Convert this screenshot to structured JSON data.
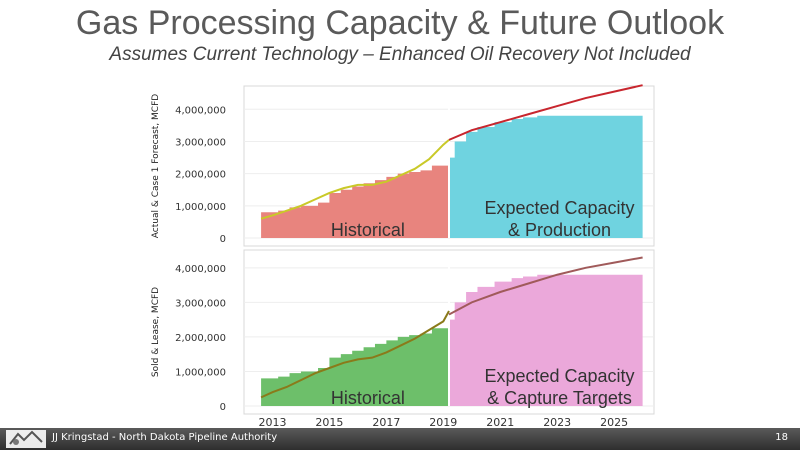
{
  "slide": {
    "title": "Gas Processing Capacity & Future Outlook",
    "subtitle": "Assumes Current Technology – Enhanced Oil Recovery Not Included",
    "footer": "JJ Kringstad - North Dakota Pipeline Authority",
    "page_number": "18"
  },
  "colors": {
    "historical_capacity_top": "#e8847e",
    "expected_capacity_top": "#6fd3e0",
    "forecast_line_top": "#c8262e",
    "actual_line_top": "#c9c928",
    "historical_capacity_bottom": "#6dbf6a",
    "expected_capacity_bottom": "#eba8da",
    "forecast_line_bottom": "#a05a5a",
    "actual_line_bottom": "#8a7a1a"
  },
  "chart_data": [
    {
      "type": "area",
      "ylabel": "Actual & Case 1 Forecast, MCFD",
      "ylim": [
        0,
        4600000
      ],
      "yticks": [
        0,
        1000000,
        2000000,
        3000000,
        4000000
      ],
      "ytick_labels": [
        "0",
        "1,000,000",
        "2,000,000",
        "3,000,000",
        "4,000,000"
      ],
      "xlim": [
        2012.0,
        2026.4
      ],
      "divider_x": 2019.2,
      "region_labels": {
        "historical": "Historical",
        "expected": "Expected Capacity\n& Production"
      },
      "series": [
        {
          "name": "capacity",
          "kind": "step-area",
          "x": [
            2012.6,
            2013.2,
            2013.6,
            2014.0,
            2014.6,
            2015.0,
            2015.4,
            2015.8,
            2016.2,
            2016.6,
            2017.0,
            2017.4,
            2017.8,
            2018.2,
            2018.6,
            2019.2,
            2019.4,
            2019.8,
            2020.2,
            2020.8,
            2021.4,
            2021.8,
            2022.3,
            2026.0
          ],
          "values": [
            800000,
            850000,
            950000,
            1000000,
            1100000,
            1400000,
            1500000,
            1600000,
            1700000,
            1800000,
            1900000,
            2000000,
            2050000,
            2100000,
            2250000,
            2500000,
            3000000,
            3300000,
            3450000,
            3600000,
            3700000,
            3750000,
            3800000,
            3800000
          ]
        },
        {
          "name": "actual",
          "kind": "line",
          "x": [
            2012.6,
            2013.0,
            2013.5,
            2014.0,
            2014.5,
            2015.0,
            2015.5,
            2016.0,
            2016.5,
            2017.0,
            2017.5,
            2018.0,
            2018.5,
            2019.0,
            2019.2
          ],
          "values": [
            600000,
            700000,
            850000,
            1000000,
            1200000,
            1400000,
            1550000,
            1650000,
            1650000,
            1750000,
            1950000,
            2150000,
            2450000,
            2900000,
            3050000
          ]
        },
        {
          "name": "forecast",
          "kind": "line",
          "x": [
            2019.2,
            2020.0,
            2021.0,
            2022.0,
            2023.0,
            2024.0,
            2025.0,
            2026.0
          ],
          "values": [
            3050000,
            3350000,
            3600000,
            3850000,
            4100000,
            4350000,
            4550000,
            4750000
          ]
        }
      ]
    },
    {
      "type": "area",
      "ylabel": "Sold & Lease, MCFD",
      "ylim": [
        0,
        4400000
      ],
      "yticks": [
        0,
        1000000,
        2000000,
        3000000,
        4000000
      ],
      "ytick_labels": [
        "0",
        "1,000,000",
        "2,000,000",
        "3,000,000",
        "4,000,000"
      ],
      "xlim": [
        2012.0,
        2026.4
      ],
      "xticks": [
        2013,
        2015,
        2017,
        2019,
        2021,
        2023,
        2025
      ],
      "xtick_labels": [
        "2013",
        "2015",
        "2017",
        "2019",
        "2021",
        "2023",
        "2025"
      ],
      "divider_x": 2019.2,
      "region_labels": {
        "historical": "Historical",
        "expected": "Expected Capacity\n& Capture Targets"
      },
      "series": [
        {
          "name": "capacity",
          "kind": "step-area",
          "x": [
            2012.6,
            2013.2,
            2013.6,
            2014.0,
            2014.6,
            2015.0,
            2015.4,
            2015.8,
            2016.2,
            2016.6,
            2017.0,
            2017.4,
            2017.8,
            2018.2,
            2018.6,
            2019.2,
            2019.4,
            2019.8,
            2020.2,
            2020.8,
            2021.4,
            2021.8,
            2022.3,
            2026.0
          ],
          "values": [
            800000,
            850000,
            950000,
            1000000,
            1100000,
            1400000,
            1500000,
            1600000,
            1700000,
            1800000,
            1900000,
            2000000,
            2050000,
            2100000,
            2250000,
            2500000,
            3000000,
            3300000,
            3450000,
            3600000,
            3700000,
            3750000,
            3800000,
            3800000
          ]
        },
        {
          "name": "actual",
          "kind": "line",
          "x": [
            2012.6,
            2013.0,
            2013.5,
            2014.0,
            2014.5,
            2015.0,
            2015.5,
            2016.0,
            2016.5,
            2017.0,
            2017.5,
            2018.0,
            2018.5,
            2019.0,
            2019.2
          ],
          "values": [
            250000,
            400000,
            550000,
            750000,
            950000,
            1100000,
            1250000,
            1350000,
            1400000,
            1550000,
            1750000,
            1950000,
            2200000,
            2450000,
            2750000
          ]
        },
        {
          "name": "forecast",
          "kind": "line",
          "x": [
            2019.2,
            2020.0,
            2021.0,
            2022.0,
            2023.0,
            2024.0,
            2025.0,
            2026.0
          ],
          "values": [
            2650000,
            3000000,
            3300000,
            3550000,
            3800000,
            4000000,
            4150000,
            4300000
          ]
        }
      ]
    }
  ]
}
